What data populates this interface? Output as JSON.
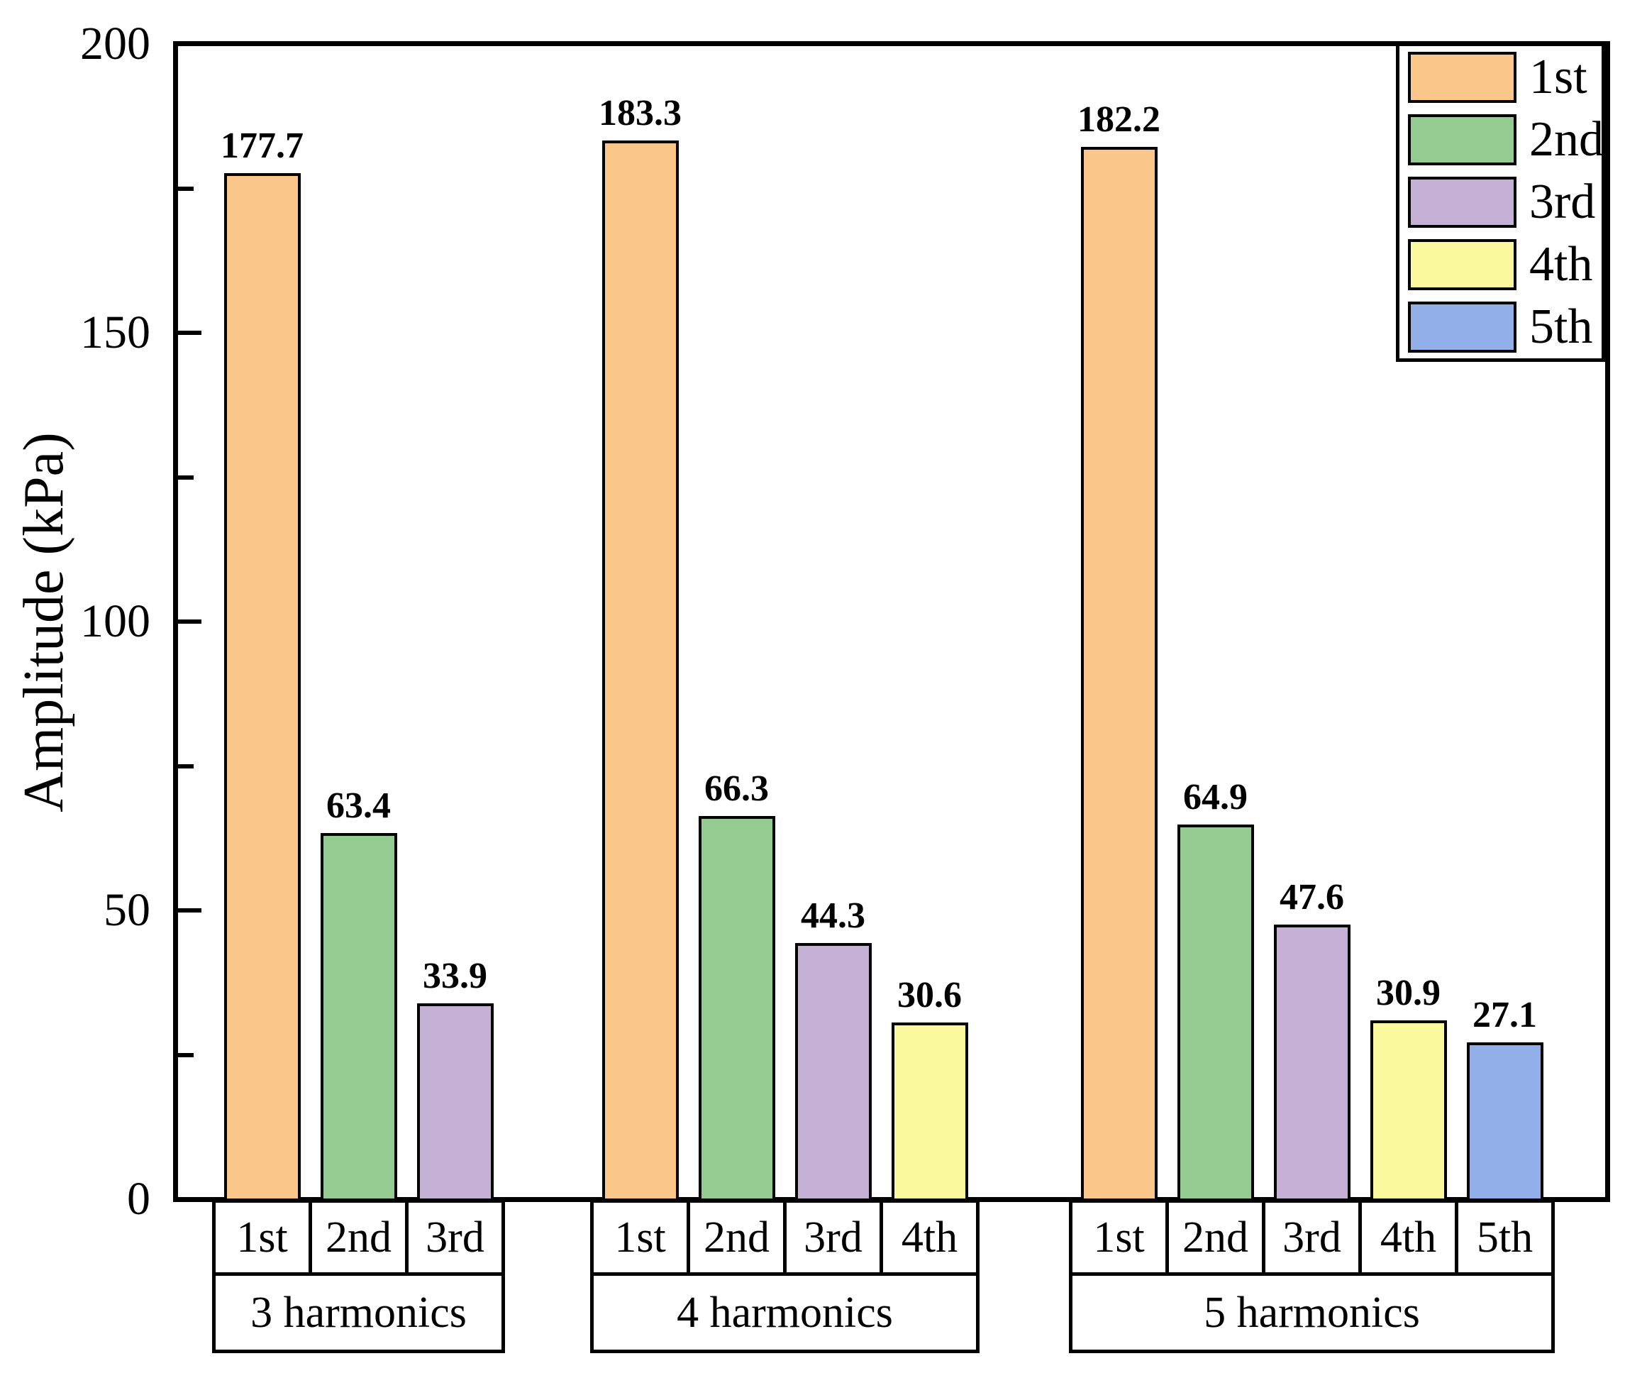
{
  "chart_data": {
    "type": "bar",
    "title": "",
    "ylabel": "Amplitude (kPa)",
    "xlabel": "",
    "ylim": [
      0,
      200
    ],
    "yticks_major": [
      0,
      50,
      100,
      150,
      200
    ],
    "yticks_minor": [
      25,
      75,
      125,
      175
    ],
    "grid": false,
    "legend_position": "top-right",
    "bar_edge_color": "#000000",
    "axis_color": "#000000",
    "background_color": "#ffffff",
    "series": [
      {
        "name": "1st",
        "color": "#FAC689"
      },
      {
        "name": "2nd",
        "color": "#93CB90"
      },
      {
        "name": "3rd",
        "color": "#C5B1D5"
      },
      {
        "name": "4th",
        "color": "#FBF99E"
      },
      {
        "name": "5th",
        "color": "#92AFEA"
      }
    ],
    "groups": [
      {
        "label": "3 harmonics",
        "bars": [
          {
            "series": "1st",
            "value": 177.7
          },
          {
            "series": "2nd",
            "value": 63.4
          },
          {
            "series": "3rd",
            "value": 33.9
          }
        ]
      },
      {
        "label": "4 harmonics",
        "bars": [
          {
            "series": "1st",
            "value": 183.3
          },
          {
            "series": "2nd",
            "value": 66.3
          },
          {
            "series": "3rd",
            "value": 44.3
          },
          {
            "series": "4th",
            "value": 30.6
          }
        ]
      },
      {
        "label": "5 harmonics",
        "bars": [
          {
            "series": "1st",
            "value": 182.2
          },
          {
            "series": "2nd",
            "value": 64.9
          },
          {
            "series": "3rd",
            "value": 47.6
          },
          {
            "series": "4th",
            "value": 30.9
          },
          {
            "series": "5th",
            "value": 27.1
          }
        ]
      }
    ]
  }
}
